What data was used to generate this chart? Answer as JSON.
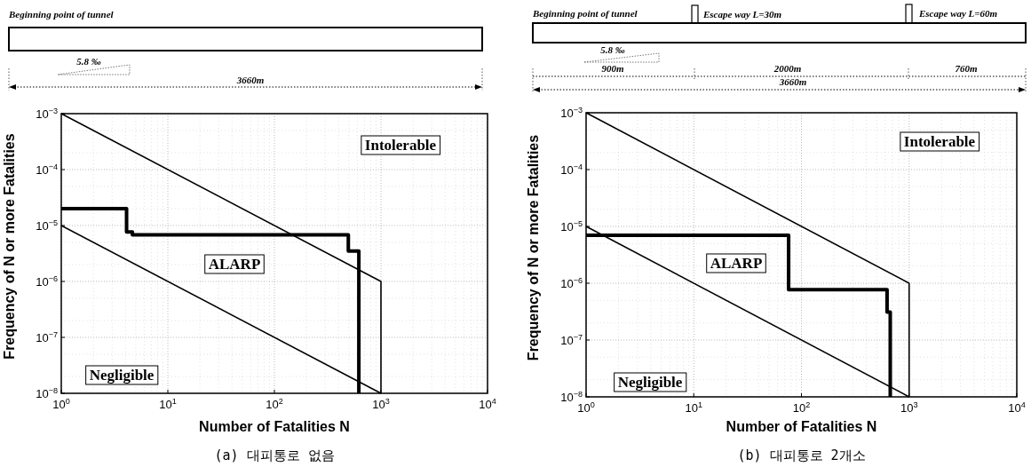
{
  "chart_data": [
    {
      "type": "line",
      "title": "(a) 대피통로 없음",
      "xlabel": "Number of Fatalities N",
      "ylabel": "Frequency of N or more Fatalities",
      "log": "xy",
      "grid": true,
      "marker": "none",
      "line_style": "solid",
      "xlim": [
        1,
        10000
      ],
      "xticks": [
        {
          "value": 1,
          "label": "10$^{0}$"
        },
        {
          "value": 10,
          "label": "10$^{1}$"
        },
        {
          "value": 100,
          "label": "10$^{2}$"
        },
        {
          "value": 1000,
          "label": "10$^{3}$"
        },
        {
          "value": 10000,
          "label": "10$^{4}$"
        }
      ],
      "ylim": [
        1e-08,
        0.001
      ],
      "yticks": [
        {
          "value": 1e-08,
          "label": "10$^{−8}$"
        },
        {
          "value": 1e-07,
          "label": "10$^{−7}$"
        },
        {
          "value": 1e-06,
          "label": "10$^{−6}$"
        },
        {
          "value": 1e-05,
          "label": "10$^{−5}$"
        },
        {
          "value": 0.0001,
          "label": "10$^{−4}$"
        },
        {
          "value": 0.001,
          "label": "10$^{−3}$"
        }
      ],
      "series": [
        {
          "color": "#000000",
          "x": [
            1,
            1000,
            1000
          ],
          "values": [
            0.001,
            1e-06,
            1e-08
          ]
        },
        {
          "color": "#000000",
          "x": [
            1,
            1000
          ],
          "values": [
            1e-05,
            1e-08
          ]
        },
        {
          "color": "#000000",
          "x": [
            1,
            4.1,
            4.1,
            4.65,
            4.65,
            494,
            494,
            620,
            620
          ],
          "values": [
            2e-05,
            2e-05,
            7.7e-06,
            7.7e-06,
            6.8e-06,
            6.8e-06,
            3.5e-06,
            3.5e-06,
            1e-08
          ]
        }
      ],
      "annotations": [
        "Beginning point of tunnel",
        "5.8 ‰",
        "3660m",
        "Intolerable",
        "ALARP",
        "Negligible"
      ]
    },
    {
      "type": "line",
      "title": "(b) 대피통로 2개소",
      "xlabel": "Number of Fatalities N",
      "ylabel": "Frequency of N or more Fatalities",
      "log": "xy",
      "grid": true,
      "marker": "none",
      "line_style": "solid",
      "xlim": [
        1,
        10000
      ],
      "xticks": [
        {
          "value": 1,
          "label": "10$^{0}$"
        },
        {
          "value": 10,
          "label": "10$^{1}$"
        },
        {
          "value": 100,
          "label": "10$^{2}$"
        },
        {
          "value": 1000,
          "label": "10$^{3}$"
        },
        {
          "value": 10000,
          "label": "10$^{4}$"
        }
      ],
      "ylim": [
        1e-08,
        0.001
      ],
      "yticks": [
        {
          "value": 1e-08,
          "label": "10$^{−8}$"
        },
        {
          "value": 1e-07,
          "label": "10$^{−7}$"
        },
        {
          "value": 1e-06,
          "label": "10$^{−6}$"
        },
        {
          "value": 1e-05,
          "label": "10$^{−5}$"
        },
        {
          "value": 0.0001,
          "label": "10$^{−4}$"
        },
        {
          "value": 0.001,
          "label": "10$^{−3}$"
        }
      ],
      "series": [
        {
          "color": "#000000",
          "x": [
            1,
            1000,
            1000
          ],
          "values": [
            0.001,
            1e-06,
            1e-08
          ]
        },
        {
          "color": "#000000",
          "x": [
            1,
            1000
          ],
          "values": [
            1e-05,
            1e-08
          ]
        },
        {
          "color": "#000000",
          "x": [
            1,
            76,
            76,
            624,
            624,
            668,
            668
          ],
          "values": [
            7e-06,
            7e-06,
            7.7e-07,
            7.7e-07,
            3.1e-07,
            3.1e-07,
            1e-08
          ]
        }
      ],
      "annotations": [
        "Beginning point of tunnel",
        "Escape way L=30m",
        "Escape way L=60m",
        "5.8 ‰",
        "900m",
        "2000m",
        "760m",
        "3660m",
        "Intolerable",
        "ALARP",
        "Negligible"
      ]
    }
  ]
}
